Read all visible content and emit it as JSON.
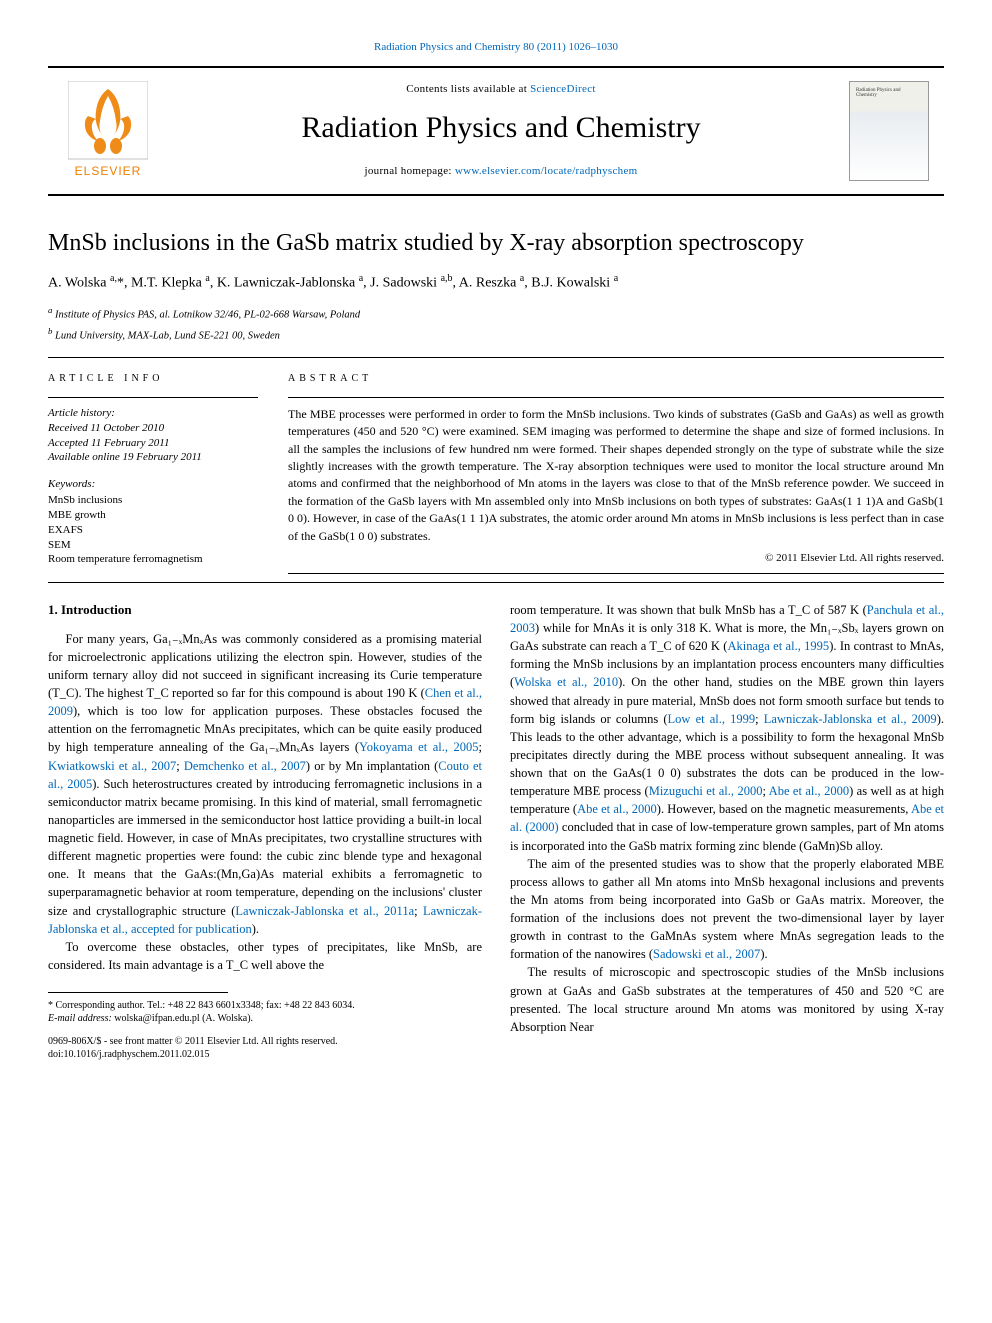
{
  "top_link": {
    "journal": "Radiation Physics and Chemistry",
    "cite": "80 (2011) 1026–1030"
  },
  "banner": {
    "contents_prefix": "Contents lists available at ",
    "contents_link": "ScienceDirect",
    "journal_title": "Radiation Physics and Chemistry",
    "homepage_prefix": "journal homepage: ",
    "homepage_url": "www.elsevier.com/locate/radphyschem",
    "publisher_label": "ELSEVIER"
  },
  "article": {
    "title": "MnSb inclusions in the GaSb matrix studied by X-ray absorption spectroscopy",
    "authors_html": "A. Wolska <sup>a,</sup>*, M.T. Klepka <sup>a</sup>, K. Lawniczak-Jablonska <sup>a</sup>, J. Sadowski <sup>a,b</sup>, A. Reszka <sup>a</sup>, B.J. Kowalski <sup>a</sup>",
    "affiliations": [
      "a Institute of Physics PAS, al. Lotnikow 32/46, PL-02-668 Warsaw, Poland",
      "b Lund University, MAX-Lab, Lund SE-221 00, Sweden"
    ]
  },
  "info": {
    "article_info_label": "ARTICLE INFO",
    "abstract_label": "ABSTRACT",
    "history_label": "Article history:",
    "history": [
      "Received 11 October 2010",
      "Accepted 11 February 2011",
      "Available online 19 February 2011"
    ],
    "keywords_label": "Keywords:",
    "keywords": [
      "MnSb inclusions",
      "MBE growth",
      "EXAFS",
      "SEM",
      "Room temperature ferromagnetism"
    ],
    "abstract": "The MBE processes were performed in order to form the MnSb inclusions. Two kinds of substrates (GaSb and GaAs) as well as growth temperatures (450 and 520 °C) were examined. SEM imaging was performed to determine the shape and size of formed inclusions. In all the samples the inclusions of few hundred nm were formed. Their shapes depended strongly on the type of substrate while the size slightly increases with the growth temperature. The X-ray absorption techniques were used to monitor the local structure around Mn atoms and confirmed that the neighborhood of Mn atoms in the layers was close to that of the MnSb reference powder. We succeed in the formation of the GaSb layers with Mn assembled only into MnSb inclusions on both types of substrates: GaAs(1 1 1)A and GaSb(1 0 0). However, in case of the GaAs(1 1 1)A substrates, the atomic order around Mn atoms in MnSb inclusions is less perfect than in case of the GaSb(1 0 0) substrates.",
    "copyright": "© 2011 Elsevier Ltd. All rights reserved."
  },
  "body": {
    "section_no": "1.",
    "section_title": "Introduction",
    "col1_p1": "For many years, Ga₁₋ₓMnₓAs was commonly considered as a promising material for microelectronic applications utilizing the electron spin. However, studies of the uniform ternary alloy did not succeed in significant increasing its Curie temperature (T_C). The highest T_C reported so far for this compound is about 190 K (",
    "col1_p1_cite1": "Chen et al., 2009",
    "col1_p1_b": "), which is too low for application purposes. These obstacles focused the attention on the ferromagnetic MnAs precipitates, which can be quite easily produced by high temperature annealing of the Ga₁₋ₓMnₓAs layers (",
    "col1_p1_cite2": "Yokoyama et al., 2005",
    "col1_p1_c": "; ",
    "col1_p1_cite3": "Kwiatkowski et al., 2007",
    "col1_p1_d": "; ",
    "col1_p1_cite4": "Demchenko et al., 2007",
    "col1_p1_e": ") or by Mn implantation (",
    "col1_p1_cite5": "Couto et al., 2005",
    "col1_p1_f": "). Such heterostructures created by introducing ferromagnetic inclusions in a semiconductor matrix became promising. In this kind of material, small ferromagnetic nanoparticles are immersed in the semiconductor host lattice providing a built-in local magnetic field. However, in case of MnAs precipitates, two crystalline structures with different magnetic properties were found: the cubic zinc blende type and hexagonal one. It means that the GaAs:(Mn,Ga)As material exhibits a ferromagnetic to superparamagnetic behavior at room temperature, depending on the inclusions' cluster size and crystallographic structure (",
    "col1_p1_cite6": "Lawniczak-Jablonska et al., 2011a",
    "col1_p1_g": "; ",
    "col1_p1_cite7": "Lawniczak-Jablonska et al., accepted for publication",
    "col1_p1_h": ").",
    "col1_p2": "To overcome these obstacles, other types of precipitates, like MnSb, are considered. Its main advantage is a T_C well above the",
    "col2_p1a": "room temperature. It was shown that bulk MnSb has a T_C of 587 K (",
    "col2_cite1": "Panchula et al., 2003",
    "col2_p1b": ") while for MnAs it is only 318 K. What is more, the Mn₁₋ₓSbₓ layers grown on GaAs substrate can reach a T_C of 620 K (",
    "col2_cite2": "Akinaga et al., 1995",
    "col2_p1c": "). In contrast to MnAs, forming the MnSb inclusions by an implantation process encounters many difficulties (",
    "col2_cite3": "Wolska et al., 2010",
    "col2_p1d": "). On the other hand, studies on the MBE grown thin layers showed that already in pure material, MnSb does not form smooth surface but tends to form big islands or columns (",
    "col2_cite4": "Low et al., 1999",
    "col2_p1e": "; ",
    "col2_cite5": "Lawniczak-Jablonska et al., 2009",
    "col2_p1f": "). This leads to the other advantage, which is a possibility to form the hexagonal MnSb precipitates directly during the MBE process without subsequent annealing. It was shown that on the GaAs(1 0 0) substrates the dots can be produced in the low-temperature MBE process (",
    "col2_cite6": "Mizuguchi et al., 2000",
    "col2_p1g": "; ",
    "col2_cite7": "Abe et al., 2000",
    "col2_p1h": ") as well as at high temperature (",
    "col2_cite8": "Abe et al., 2000",
    "col2_p1i": "). However, based on the magnetic measurements, ",
    "col2_cite9": "Abe et al. (2000)",
    "col2_p1j": " concluded that in case of low-temperature grown samples, part of Mn atoms is incorporated into the GaSb matrix forming zinc blende (GaMn)Sb alloy.",
    "col2_p2a": "The aim of the presented studies was to show that the properly elaborated MBE process allows to gather all Mn atoms into MnSb hexagonal inclusions and prevents the Mn atoms from being incorporated into GaSb or GaAs matrix. Moreover, the formation of the inclusions does not prevent the two-dimensional layer by layer growth in contrast to the GaMnAs system where MnAs segregation leads to the formation of the nanowires (",
    "col2_cite10": "Sadowski et al., 2007",
    "col2_p2b": ").",
    "col2_p3": "The results of microscopic and spectroscopic studies of the MnSb inclusions grown at GaAs and GaSb substrates at the temperatures of 450 and 520 °C are presented. The local structure around Mn atoms was monitored by using X-ray Absorption Near"
  },
  "footnote": {
    "corr": "* Corresponding author. Tel.: +48 22 843 6601x3348; fax: +48 22 843 6034.",
    "email_lbl": "E-mail address:",
    "email": "wolska@ifpan.edu.pl (A. Wolska)."
  },
  "footer": {
    "issn": "0969-806X/$ - see front matter © 2011 Elsevier Ltd. All rights reserved.",
    "doi": "doi:10.1016/j.radphyschem.2011.02.015"
  },
  "colors": {
    "link": "#0067b8",
    "text": "#000000",
    "elsevier_orange": "#ee7f00",
    "elsevier_border": "#888888"
  }
}
